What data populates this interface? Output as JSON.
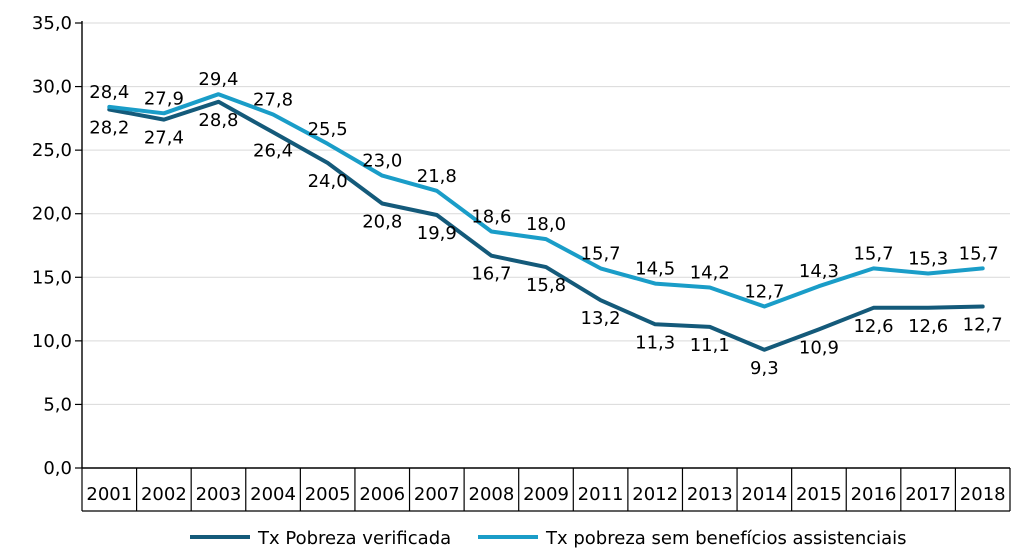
{
  "chart_data": {
    "type": "line",
    "title": "",
    "xlabel": "",
    "ylabel": "",
    "categories": [
      "2001",
      "2002",
      "2003",
      "2004",
      "2005",
      "2006",
      "2007",
      "2008",
      "2009",
      "2011",
      "2012",
      "2013",
      "2014",
      "2015",
      "2016",
      "2017",
      "2018"
    ],
    "ylim": [
      0,
      35
    ],
    "yticks": [
      "0,0",
      "5,0",
      "10,0",
      "15,0",
      "20,0",
      "25,0",
      "30,0",
      "35,0"
    ],
    "grid": true,
    "legend_position": "bottom",
    "series": [
      {
        "name": "Tx Pobreza verificada",
        "color": "#145a7a",
        "values": [
          28.2,
          27.4,
          28.8,
          26.4,
          24.0,
          20.8,
          19.9,
          16.7,
          15.8,
          13.2,
          11.3,
          11.1,
          9.3,
          10.9,
          12.6,
          12.6,
          12.7
        ],
        "labels": [
          "28,2",
          "27,4",
          "28,8",
          "26,4",
          "24,0",
          "20,8",
          "19,9",
          "16,7",
          "15,8",
          "13,2",
          "11,3",
          "11,1",
          "9,3",
          "10,9",
          "12,6",
          "12,6",
          "12,7"
        ]
      },
      {
        "name": "Tx pobreza  sem benefícios assistenciais",
        "color": "#1a9dc8",
        "values": [
          28.4,
          27.9,
          29.4,
          27.8,
          25.5,
          23.0,
          21.8,
          18.6,
          18.0,
          15.7,
          14.5,
          14.2,
          12.7,
          14.3,
          15.7,
          15.3,
          15.7
        ],
        "labels": [
          "28,4",
          "27,9",
          "29,4",
          "27,8",
          "25,5",
          "23,0",
          "21,8",
          "18,6",
          "18,0",
          "15,7",
          "14,5",
          "14,2",
          "12,7",
          "14,3",
          "15,7",
          "15,3",
          "15,7"
        ]
      }
    ]
  }
}
